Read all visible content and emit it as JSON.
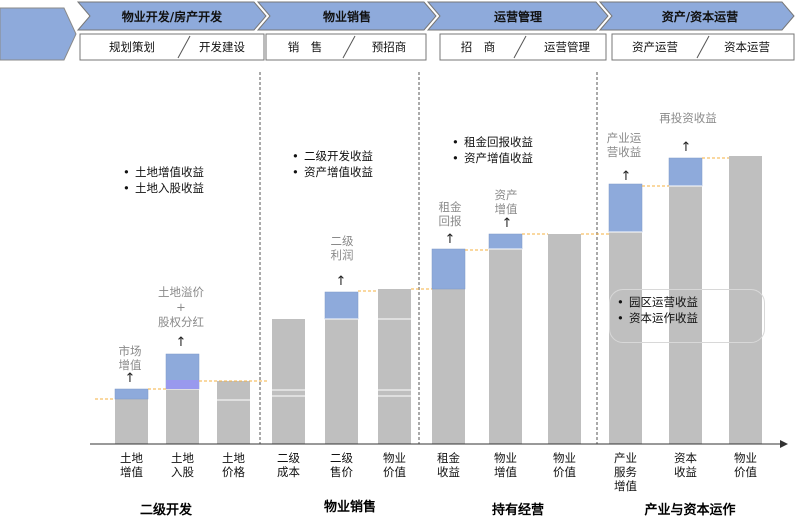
{
  "header": {
    "phases": [
      {
        "title": "物业开发/房产开发",
        "subs": [
          "规划策划",
          "开发建设"
        ]
      },
      {
        "title": "物业销售",
        "subs": [
          "销　售",
          "预招商"
        ]
      },
      {
        "title": "运营管理",
        "subs": [
          "招　商",
          "运营管理"
        ]
      },
      {
        "title": "资产/资本运营",
        "subs": [
          "资产运营",
          "资本运营"
        ]
      }
    ]
  },
  "notes": {
    "land": [
      "土地增值收益",
      "土地入股收益"
    ],
    "sales": [
      "二级开发收益",
      "资产增值收益"
    ],
    "hold": [
      "租金回报收益",
      "资产增值收益"
    ],
    "park": [
      "园区运营收益",
      "资本运作收益"
    ]
  },
  "captions": {
    "market": "市场\n增值",
    "premium": "土地溢价\n+\n股权分红",
    "profit2": "二级\n利润",
    "rent": "租金\n回报",
    "asset": "资产\n增值",
    "industry": "产业运\n营收益",
    "reinvest": "再投资收益"
  },
  "x_labels": [
    "土地\n增值",
    "土地\n入股",
    "土地\n价格",
    "二级\n成本",
    "二级\n售价",
    "物业\n价值",
    "租金\n收益",
    "物业\n增值",
    "物业\n价值",
    "产业\n服务\n增值",
    "资本\n收益",
    "物业\n价值"
  ],
  "sections": [
    "二级开发",
    "物业销售",
    "持有经营",
    "产业与资本运作"
  ],
  "colors": {
    "gray_bar": "#bfbfbf",
    "blue_bar": "#8eaadb",
    "purple_bar": "#9999ee",
    "dash_orange": "#f5b041",
    "divider": "#555555",
    "header_fill": "#8eaadb"
  },
  "chart_data": {
    "type": "bar",
    "categories": [
      "土地增值",
      "土地入股",
      "土地价格",
      "二级成本",
      "二级售价",
      "物业价值",
      "租金收益",
      "物业增值",
      "物业价值",
      "产业服务增值",
      "资本收益",
      "物业价值"
    ],
    "series": [
      {
        "base": [
          45,
          55,
          63,
          125,
          125,
          155,
          155,
          195,
          210,
          212,
          258,
          288
        ]
      },
      {
        "increment": [
          10,
          35,
          0,
          0,
          27,
          0,
          40,
          15,
          0,
          48,
          28,
          0
        ]
      }
    ]
  }
}
